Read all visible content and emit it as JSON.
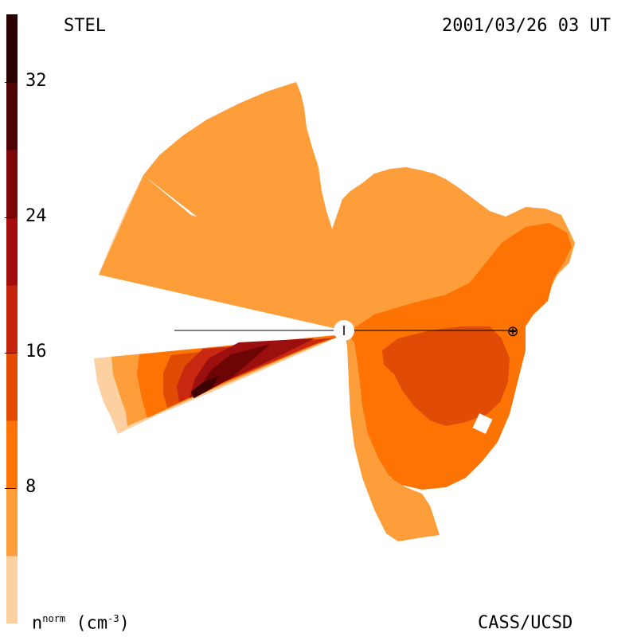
{
  "chart_data": {
    "type": "heatmap",
    "title_left": "STEL",
    "title_right": "2001/03/26 03 UT",
    "credit": "CASS/UCSD",
    "colorbar": {
      "label_main": "n",
      "label_sup": "norm",
      "label_unit_pre": " (cm",
      "label_unit_sup": "-3",
      "label_unit_post": ")",
      "ticks": [
        {
          "value": 8,
          "label": "8"
        },
        {
          "value": 16,
          "label": "16"
        },
        {
          "value": 24,
          "label": "24"
        },
        {
          "value": 32,
          "label": "32"
        }
      ],
      "range": [
        0,
        36
      ],
      "colors": [
        "#fdd0a2",
        "#fd9e3b",
        "#fd7304",
        "#e34a04",
        "#c3240c",
        "#a30c0c",
        "#7d0707",
        "#4e0303",
        "#2a0000"
      ]
    },
    "levels": {
      "c1": "#fdd0a2",
      "c2": "#fd9e3b",
      "c3": "#fd7304",
      "c4": "#e04b06",
      "c5": "#c82810",
      "c6": "#9c0f0f",
      "c7": "#6e0505",
      "c8": "#3e0000"
    },
    "earth_marker": "⊕"
  }
}
